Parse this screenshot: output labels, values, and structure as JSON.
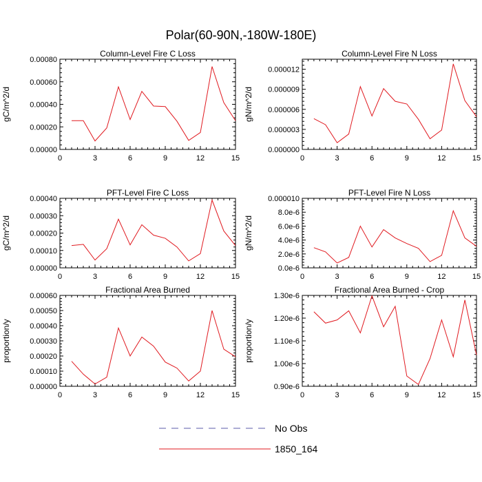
{
  "figure": {
    "title": "Polar(60-90N,-180W-180E)"
  },
  "legend": {
    "entries": [
      {
        "label": "No Obs",
        "color": "#5a5aa8",
        "dash": true
      },
      {
        "label": "1850_164",
        "color": "#e0181e",
        "dash": false
      }
    ]
  },
  "chart_data": [
    {
      "type": "line",
      "title": "Column-Level Fire C Loss",
      "ylabel": "gC/m^2/d",
      "xlim": [
        0,
        15
      ],
      "ylim": [
        0,
        0.0008
      ],
      "xticks": [
        0,
        3,
        6,
        9,
        12,
        15
      ],
      "yticks": [
        0,
        0.0002,
        0.0004,
        0.0006,
        0.0008
      ],
      "ytick_labels": [
        "0.00000",
        "0.00020",
        "0.00040",
        "0.00060",
        "0.00080"
      ],
      "series": [
        {
          "name": "1850_164",
          "color": "#e0181e",
          "x": [
            1,
            2,
            3,
            4,
            5,
            6,
            7,
            8,
            9,
            10,
            11,
            12,
            13,
            14,
            15
          ],
          "values": [
            0.000255,
            0.000255,
            7.5e-05,
            0.00019,
            0.000555,
            0.000265,
            0.000515,
            0.000385,
            0.00038,
            0.00025,
            8e-05,
            0.00015,
            0.000735,
            0.000415,
            0.000255
          ]
        }
      ]
    },
    {
      "type": "line",
      "title": "Column-Level Fire N Loss",
      "ylabel": "gN/m^2/d",
      "xlim": [
        0,
        15
      ],
      "ylim": [
        0,
        1.35e-05
      ],
      "xticks": [
        0,
        3,
        6,
        9,
        12,
        15
      ],
      "yticks": [
        0,
        3e-06,
        6e-06,
        9e-06,
        1.2e-05
      ],
      "ytick_labels": [
        "0.000000",
        "0.000003",
        "0.000006",
        "0.000009",
        "0.000012"
      ],
      "series": [
        {
          "name": "1850_164",
          "color": "#e0181e",
          "x": [
            1,
            2,
            3,
            4,
            5,
            6,
            7,
            8,
            9,
            10,
            11,
            12,
            13,
            14,
            15
          ],
          "values": [
            4.6e-06,
            3.7e-06,
            1e-06,
            2.3e-06,
            9.4e-06,
            5e-06,
            9.1e-06,
            7.2e-06,
            6.8e-06,
            4.5e-06,
            1.6e-06,
            2.9e-06,
            1.28e-05,
            7.3e-06,
            4.9e-06
          ]
        }
      ]
    },
    {
      "type": "line",
      "title": "PFT-Level Fire C Loss",
      "ylabel": "gC/m^2/d",
      "xlim": [
        0,
        15
      ],
      "ylim": [
        0,
        0.0004
      ],
      "xticks": [
        0,
        3,
        6,
        9,
        12,
        15
      ],
      "yticks": [
        0,
        0.0001,
        0.0002,
        0.0003,
        0.0004
      ],
      "ytick_labels": [
        "0.00000",
        "0.00010",
        "0.00020",
        "0.00030",
        "0.00040"
      ],
      "series": [
        {
          "name": "1850_164",
          "color": "#e0181e",
          "x": [
            1,
            2,
            3,
            4,
            5,
            6,
            7,
            8,
            9,
            10,
            11,
            12,
            13,
            14,
            15
          ],
          "values": [
            0.000128,
            0.000135,
            4.5e-05,
            0.00011,
            0.00028,
            0.000132,
            0.000248,
            0.000188,
            0.00017,
            0.00012,
            4e-05,
            8.2e-05,
            0.00039,
            0.000212,
            0.000128
          ]
        }
      ]
    },
    {
      "type": "line",
      "title": "PFT-Level Fire N Loss",
      "ylabel": "gN/m^2/d",
      "xlim": [
        0,
        15
      ],
      "ylim": [
        0,
        1e-05
      ],
      "xticks": [
        0,
        3,
        6,
        9,
        12,
        15
      ],
      "yticks": [
        0,
        2e-06,
        4e-06,
        6e-06,
        8e-06,
        1e-05
      ],
      "ytick_labels": [
        "0.0e-6",
        "2.0e-6",
        "4.0e-6",
        "6.0e-6",
        "8.0e-6",
        "0.000010"
      ],
      "series": [
        {
          "name": "1850_164",
          "color": "#e0181e",
          "x": [
            1,
            2,
            3,
            4,
            5,
            6,
            7,
            8,
            9,
            10,
            11,
            12,
            13,
            14,
            15
          ],
          "values": [
            2.9e-06,
            2.3e-06,
            7e-07,
            1.5e-06,
            6e-06,
            3e-06,
            5.5e-06,
            4.3e-06,
            3.5e-06,
            2.8e-06,
            9e-07,
            1.8e-06,
            8.2e-06,
            4.3e-06,
            3.1e-06
          ]
        }
      ]
    },
    {
      "type": "line",
      "title": "Fractional Area Burned",
      "ylabel": "proportion/y",
      "xlim": [
        0,
        15
      ],
      "ylim": [
        0,
        0.0006
      ],
      "xticks": [
        0,
        3,
        6,
        9,
        12,
        15
      ],
      "yticks": [
        0,
        0.0001,
        0.0002,
        0.0003,
        0.0004,
        0.0005,
        0.0006
      ],
      "ytick_labels": [
        "0.00000",
        "0.00010",
        "0.00020",
        "0.00030",
        "0.00040",
        "0.00050",
        "0.00060"
      ],
      "series": [
        {
          "name": "1850_164",
          "color": "#e0181e",
          "x": [
            1,
            2,
            3,
            4,
            5,
            6,
            7,
            8,
            9,
            10,
            11,
            12,
            13,
            14,
            15
          ],
          "values": [
            0.000165,
            8e-05,
            1.5e-05,
            6e-05,
            0.000385,
            0.0002,
            0.000325,
            0.000265,
            0.00016,
            0.00012,
            3.5e-05,
            0.0001,
            0.0005,
            0.000245,
            0.000195
          ]
        }
      ]
    },
    {
      "type": "line",
      "title": "Fractional Area Burned - Crop",
      "ylabel": "proportion/y",
      "xlim": [
        0,
        15
      ],
      "ylim": [
        9e-07,
        1.3e-06
      ],
      "xticks": [
        0,
        3,
        6,
        9,
        12,
        15
      ],
      "yticks": [
        9e-07,
        1e-06,
        1.1e-06,
        1.2e-06,
        1.3e-06
      ],
      "ytick_labels": [
        "0.90e-6",
        "1.00e-6",
        "1.10e-6",
        "1.20e-6",
        "1.30e-6"
      ],
      "series": [
        {
          "name": "1850_164",
          "color": "#e0181e",
          "x": [
            1,
            2,
            3,
            4,
            5,
            6,
            7,
            8,
            9,
            10,
            11,
            12,
            13,
            14,
            15
          ],
          "values": [
            1.228e-06,
            1.178e-06,
            1.192e-06,
            1.232e-06,
            1.135e-06,
            1.298e-06,
            1.162e-06,
            1.252e-06,
            9.45e-07,
            9.08e-07,
            1.022e-06,
            1.192e-06,
            1.03e-06,
            1.28e-06,
            1.038e-06
          ]
        }
      ]
    }
  ]
}
